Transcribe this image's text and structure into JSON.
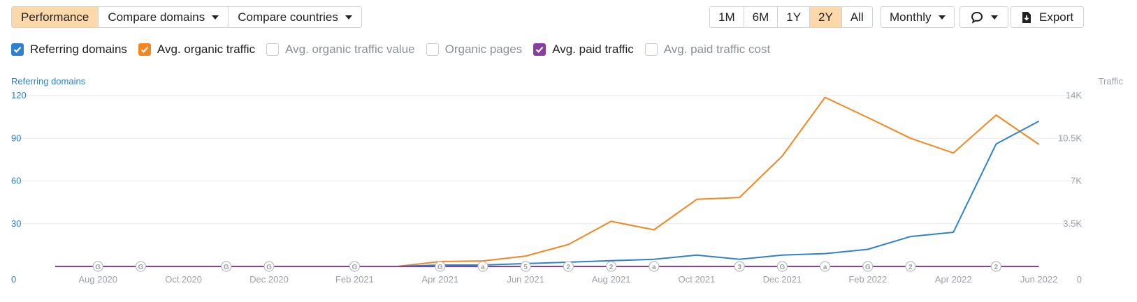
{
  "toolbar": {
    "tabs": [
      {
        "label": "Performance",
        "active": true
      },
      {
        "label": "Compare domains",
        "active": false
      },
      {
        "label": "Compare countries",
        "active": false
      }
    ],
    "ranges": [
      {
        "label": "1M",
        "active": false
      },
      {
        "label": "6M",
        "active": false
      },
      {
        "label": "1Y",
        "active": false
      },
      {
        "label": "2Y",
        "active": true
      },
      {
        "label": "All",
        "active": false
      }
    ],
    "interval_label": "Monthly",
    "comment_icon": "comment-icon",
    "export_label": "Export",
    "export_icon": "download-icon"
  },
  "legend": [
    {
      "label": "Referring domains",
      "checked": true,
      "color": "#2f80d1"
    },
    {
      "label": "Avg. organic traffic",
      "checked": true,
      "color": "#f5861f"
    },
    {
      "label": "Avg. organic traffic value",
      "checked": false
    },
    {
      "label": "Organic pages",
      "checked": false
    },
    {
      "label": "Avg. paid traffic",
      "checked": true,
      "color": "#8a3ea0"
    },
    {
      "label": "Avg. paid traffic cost",
      "checked": false
    }
  ],
  "chart_data": {
    "type": "line",
    "y_left_label": "Referring domains",
    "y_right_label": "Traffic",
    "y_left_ticks": [
      0,
      30,
      60,
      90,
      120
    ],
    "y_left_range": [
      0,
      120
    ],
    "y_right_ticks": [
      "0",
      "3.5K",
      "7K",
      "10.5K",
      "14K"
    ],
    "y_right_range": [
      0,
      14000
    ],
    "x_labels": [
      "Aug 2020",
      "Oct 2020",
      "Dec 2020",
      "Feb 2021",
      "Apr 2021",
      "Jun 2021",
      "Aug 2021",
      "Oct 2021",
      "Dec 2021",
      "Feb 2022",
      "Apr 2022",
      "Jun 2022"
    ],
    "x": [
      "Jul 2020",
      "Aug 2020",
      "Sep 2020",
      "Oct 2020",
      "Nov 2020",
      "Dec 2020",
      "Jan 2021",
      "Feb 2021",
      "Mar 2021",
      "Apr 2021",
      "May 2021",
      "Jun 2021",
      "Jul 2021",
      "Aug 2021",
      "Sep 2021",
      "Oct 2021",
      "Nov 2021",
      "Dec 2021",
      "Jan 2022",
      "Feb 2022",
      "Mar 2022",
      "Apr 2022",
      "May 2022",
      "Jun 2022"
    ],
    "grid": true,
    "series": [
      {
        "name": "Referring domains",
        "axis": "left",
        "color": "#2f80d1",
        "values": [
          0,
          0,
          0,
          0,
          0,
          0,
          0,
          0,
          0,
          1,
          1,
          2,
          3,
          4,
          5,
          8,
          5,
          8,
          9,
          12,
          21,
          24,
          86,
          102
        ]
      },
      {
        "name": "Avg. organic traffic",
        "axis": "right",
        "color": "#f5861f",
        "values": [
          0,
          0,
          0,
          0,
          0,
          0,
          0,
          0,
          0,
          400,
          450,
          850,
          1800,
          3700,
          3000,
          5500,
          5650,
          9050,
          13850,
          12200,
          10500,
          9300,
          12400,
          10000
        ]
      },
      {
        "name": "Avg. paid traffic",
        "axis": "right",
        "color": "#8a3ea0",
        "values": [
          0,
          0,
          0,
          0,
          0,
          0,
          0,
          0,
          0,
          0,
          0,
          0,
          0,
          0,
          0,
          0,
          0,
          0,
          0,
          0,
          0,
          0,
          0,
          0
        ]
      }
    ],
    "annotations": [
      {
        "x": "Aug 2020",
        "label": "G"
      },
      {
        "x": "Sep 2020",
        "label": "G"
      },
      {
        "x": "Nov 2020",
        "label": "G"
      },
      {
        "x": "Dec 2020",
        "label": "G"
      },
      {
        "x": "Feb 2021",
        "label": "G"
      },
      {
        "x": "Apr 2021",
        "label": "G"
      },
      {
        "x": "May 2021",
        "label": "a"
      },
      {
        "x": "Jun 2021",
        "label": "5"
      },
      {
        "x": "Jul 2021",
        "label": "2"
      },
      {
        "x": "Aug 2021",
        "label": "2"
      },
      {
        "x": "Sep 2021",
        "label": "a"
      },
      {
        "x": "Nov 2021",
        "label": "3"
      },
      {
        "x": "Dec 2021",
        "label": "G"
      },
      {
        "x": "Jan 2022",
        "label": "a"
      },
      {
        "x": "Feb 2022",
        "label": "G"
      },
      {
        "x": "Mar 2022",
        "label": "2"
      },
      {
        "x": "May 2022",
        "label": "2"
      }
    ]
  }
}
